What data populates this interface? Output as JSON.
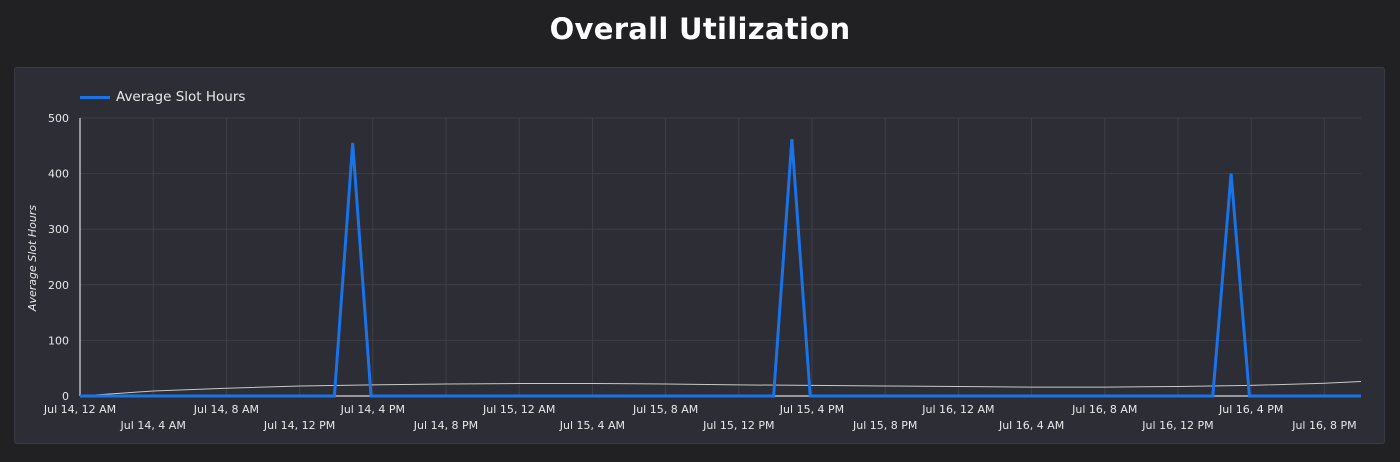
{
  "chart_data": {
    "type": "line",
    "title": "Overall Utilization",
    "ylabel": "Average Slot Hours",
    "xlabel": "",
    "legend_position": "top-left",
    "grid": true,
    "ylim": [
      0,
      500
    ],
    "y_ticks": [
      0,
      100,
      200,
      300,
      400,
      500
    ],
    "x_range_hours": [
      0,
      70
    ],
    "x_tick_labels": [
      "Jul 14, 12 AM",
      "Jul 14, 4 AM",
      "Jul 14, 8 AM",
      "Jul 14, 12 PM",
      "Jul 14, 4 PM",
      "Jul 14, 8 PM",
      "Jul 15, 12 AM",
      "Jul 15, 4 AM",
      "Jul 15, 8 AM",
      "Jul 15, 12 PM",
      "Jul 15, 4 PM",
      "Jul 15, 8 PM",
      "Jul 16, 12 AM",
      "Jul 16, 4 AM",
      "Jul 16, 8 AM",
      "Jul 16, 12 PM",
      "Jul 16, 4 PM",
      "Jul 16, 8 PM"
    ],
    "series": [
      {
        "name": "Average Slot Hours",
        "color": "#1a73e8",
        "points": [
          [
            0,
            0
          ],
          [
            13.9,
            0
          ],
          [
            14.9,
            455
          ],
          [
            15.9,
            0
          ],
          [
            37.9,
            0
          ],
          [
            38.9,
            462
          ],
          [
            39.9,
            0
          ],
          [
            61.9,
            0
          ],
          [
            62.9,
            400
          ],
          [
            63.9,
            0
          ],
          [
            68,
            0
          ],
          [
            70,
            0
          ]
        ]
      },
      {
        "name": "",
        "color": "#c8c8c8",
        "points": [
          [
            0,
            0
          ],
          [
            4,
            9
          ],
          [
            8,
            14
          ],
          [
            12,
            18
          ],
          [
            16,
            20
          ],
          [
            20,
            21.5
          ],
          [
            24,
            22.5
          ],
          [
            28,
            22.5
          ],
          [
            32,
            21.5
          ],
          [
            36,
            20
          ],
          [
            40,
            19
          ],
          [
            44,
            18
          ],
          [
            48,
            17
          ],
          [
            52,
            16
          ],
          [
            56,
            16
          ],
          [
            60,
            17
          ],
          [
            64,
            19
          ],
          [
            68,
            23
          ],
          [
            70,
            26
          ]
        ]
      }
    ]
  },
  "colors": {
    "background": "#212124",
    "panel": "#2c2d35",
    "grid": "#3e3f49",
    "text": "#e8e8e8"
  }
}
